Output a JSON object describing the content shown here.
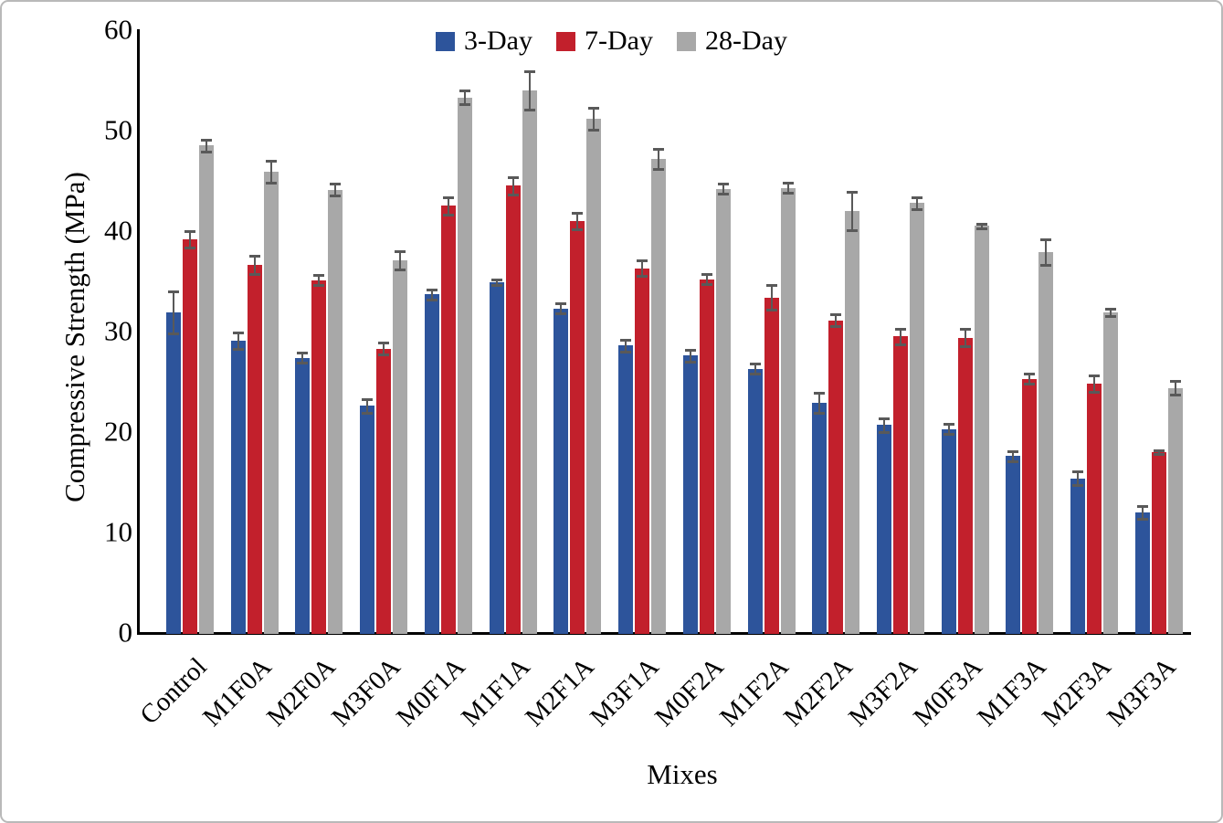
{
  "chart_data": {
    "type": "bar",
    "title": "",
    "xlabel": "Mixes",
    "ylabel": "Compressive Strength (MPa)",
    "ylim": [
      0,
      60
    ],
    "yticks": [
      0,
      10,
      20,
      30,
      40,
      50,
      60
    ],
    "grid": false,
    "legend_position": "top-center",
    "error_bars": true,
    "error_bar_color": "#595959",
    "axis_color": "#000000",
    "categories": [
      "Control",
      "M1F0A",
      "M2F0A",
      "M3F0A",
      "M0F1A",
      "M1F1A",
      "M2F1A",
      "M3F1A",
      "M0F2A",
      "M1F2A",
      "M2F2A",
      "M3F2A",
      "M0F3A",
      "M1F3A",
      "M2F3A",
      "M3F3A"
    ],
    "series": [
      {
        "name": "3-Day",
        "color": "#2D549B",
        "values": [
          32.0,
          29.2,
          27.5,
          22.7,
          33.8,
          35.0,
          32.4,
          28.7,
          27.7,
          26.4,
          23.0,
          20.8,
          20.4,
          17.7,
          15.5,
          12.1
        ],
        "errors": [
          2.1,
          0.8,
          0.5,
          0.7,
          0.5,
          0.3,
          0.5,
          0.6,
          0.6,
          0.5,
          1.0,
          0.7,
          0.5,
          0.5,
          0.7,
          0.6
        ]
      },
      {
        "name": "7-Day",
        "color": "#C2202C",
        "values": [
          39.3,
          36.7,
          35.2,
          28.4,
          42.6,
          44.6,
          41.1,
          36.4,
          35.3,
          33.5,
          31.2,
          29.6,
          29.5,
          25.4,
          24.9,
          18.1
        ],
        "errors": [
          0.8,
          0.9,
          0.5,
          0.6,
          0.9,
          0.9,
          0.8,
          0.8,
          0.5,
          1.2,
          0.6,
          0.8,
          0.9,
          0.5,
          0.8,
          0.2
        ]
      },
      {
        "name": "28-Day",
        "color": "#A8A8A8",
        "values": [
          48.6,
          46.0,
          44.2,
          37.2,
          53.4,
          54.1,
          51.3,
          47.3,
          44.3,
          44.4,
          42.1,
          42.9,
          40.6,
          38.0,
          32.0,
          24.5
        ],
        "errors": [
          0.6,
          1.1,
          0.6,
          0.9,
          0.7,
          1.9,
          1.1,
          1.0,
          0.5,
          0.5,
          1.9,
          0.6,
          0.2,
          1.3,
          0.4,
          0.7
        ]
      }
    ]
  }
}
